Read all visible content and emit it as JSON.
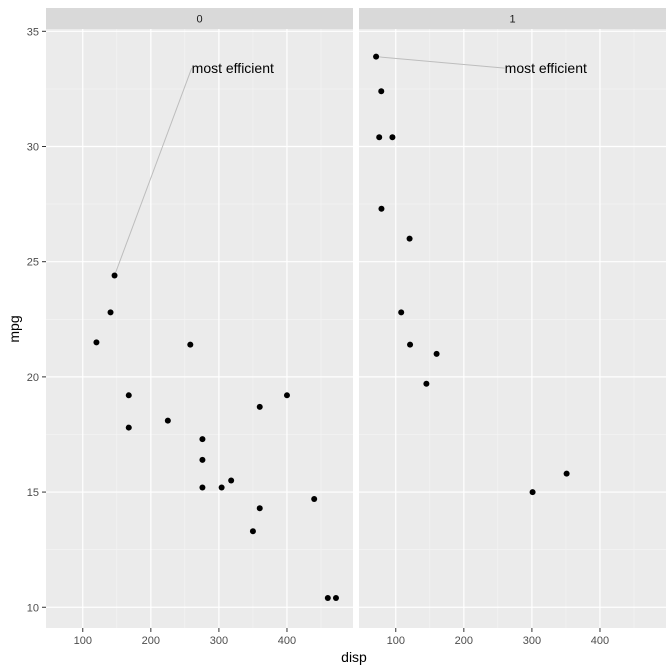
{
  "colors": {
    "panel_bg": "#ebebeb",
    "grid_major": "#ffffff",
    "grid_minor": "#f5f5f5",
    "strip_bg": "#d9d9d9",
    "point": "#000000",
    "segment": "#bdbdbd",
    "tick": "#333333"
  },
  "chart_data": {
    "type": "scatter",
    "xlabel": "disp",
    "ylabel": "mpg",
    "xlim": [
      46,
      497
    ],
    "ylim": [
      9.1,
      35.1
    ],
    "x_ticks": [
      100,
      200,
      300,
      400
    ],
    "y_ticks": [
      10,
      15,
      20,
      25,
      30,
      35
    ],
    "grid": true,
    "facets": [
      {
        "label": "0",
        "points": [
          [
            120.1,
            21.5
          ],
          [
            140.8,
            22.8
          ],
          [
            146.7,
            24.4
          ],
          [
            167.6,
            19.2
          ],
          [
            167.6,
            17.8
          ],
          [
            225,
            18.1
          ],
          [
            258,
            21.4
          ],
          [
            275.8,
            17.3
          ],
          [
            275.8,
            16.4
          ],
          [
            275.8,
            15.2
          ],
          [
            304,
            15.2
          ],
          [
            318,
            15.5
          ],
          [
            350,
            13.3
          ],
          [
            360,
            18.7
          ],
          [
            360,
            14.3
          ],
          [
            400,
            19.2
          ],
          [
            440,
            14.7
          ],
          [
            460,
            10.4
          ],
          [
            472,
            10.4
          ]
        ],
        "annotation": {
          "text": "most efficient",
          "point": [
            146.7,
            24.4
          ],
          "label_at": [
            260,
            33.4
          ]
        }
      },
      {
        "label": "1",
        "points": [
          [
            71.1,
            33.9
          ],
          [
            75.7,
            30.4
          ],
          [
            78.7,
            32.4
          ],
          [
            79,
            27.3
          ],
          [
            95.1,
            30.4
          ],
          [
            108,
            22.8
          ],
          [
            120.3,
            26
          ],
          [
            121,
            21.4
          ],
          [
            145,
            19.7
          ],
          [
            160,
            21
          ],
          [
            301,
            15
          ],
          [
            351,
            15.8
          ]
        ],
        "annotation": {
          "text": "most efficient",
          "point": [
            71.1,
            33.9
          ],
          "label_at": [
            260,
            33.4
          ]
        }
      }
    ]
  }
}
